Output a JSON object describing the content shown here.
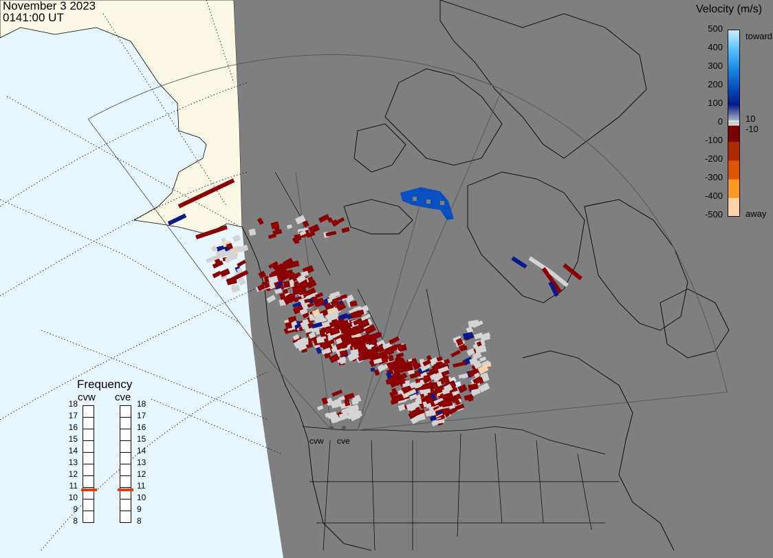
{
  "header": {
    "date": "November 3 2023",
    "time": "0141:00 UT"
  },
  "colorbar": {
    "title": "Velocity (m/s)",
    "ticks": [
      "500",
      "400",
      "300",
      "200",
      "100",
      "0",
      "-100",
      "-200",
      "-300",
      "-400",
      "-500"
    ],
    "toward_label": "toward",
    "away_label": "away",
    "plus_label": "10",
    "minus_label": "-10",
    "colors": [
      "#cfefff",
      "#5cc4ff",
      "#1a8fe8",
      "#0a55c4",
      "#001a8a",
      "#cccccc",
      "#7a0000",
      "#b02a00",
      "#e05400",
      "#ff9a20",
      "#ffd2a8"
    ]
  },
  "frequency": {
    "title": "Frequency",
    "radars": [
      "cvw",
      "cve"
    ],
    "levels": [
      "18",
      "17",
      "16",
      "15",
      "14",
      "13",
      "12",
      "11",
      "10",
      "9",
      "8"
    ],
    "selected_mhz": [
      11,
      11
    ],
    "marker_color": "#e04010"
  },
  "sites": [
    "cvw",
    "cve"
  ],
  "colors": {
    "ocean": "#e8f6ff",
    "land_day": "#fbf8e6",
    "night": "#7f7f7f",
    "cell_gray": "#d4d4d4"
  }
}
